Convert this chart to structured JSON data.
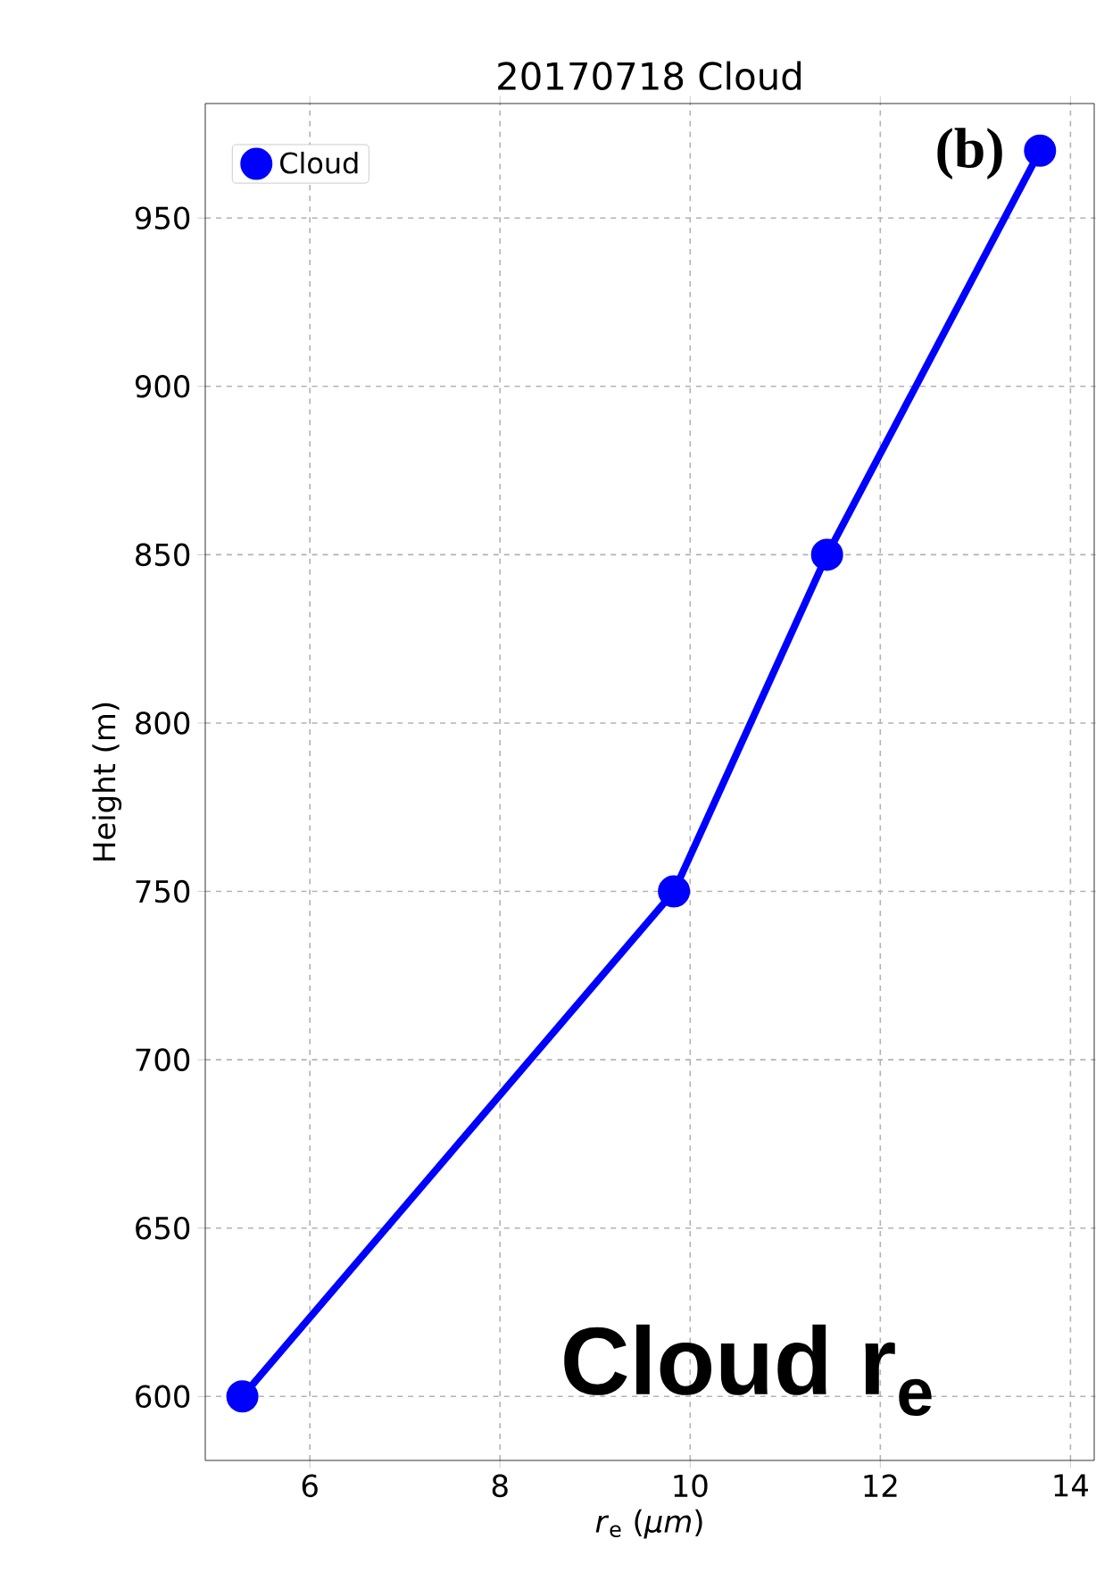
{
  "chart_data": {
    "type": "line",
    "title": "20170718 Cloud",
    "xlabel": "*r*$_{e}$ (*μm*)",
    "ylabel": "Height (m)",
    "x": [
      5.29,
      9.83,
      11.44,
      13.68
    ],
    "series": [
      {
        "name": "Cloud",
        "color": "#0000ff",
        "values": [
          600,
          750,
          850,
          970
        ]
      }
    ],
    "xlim": [
      4.9,
      14.25
    ],
    "ylim": [
      581,
      984
    ],
    "xticks": [
      6,
      8,
      10,
      12,
      14
    ],
    "yticks": [
      600,
      650,
      700,
      750,
      800,
      850,
      900,
      950
    ],
    "grid": true,
    "legend": "top left",
    "marker": "circle",
    "line_style": "solid",
    "annotations": [
      "(b)",
      "Cloud r$_{e}$"
    ]
  }
}
